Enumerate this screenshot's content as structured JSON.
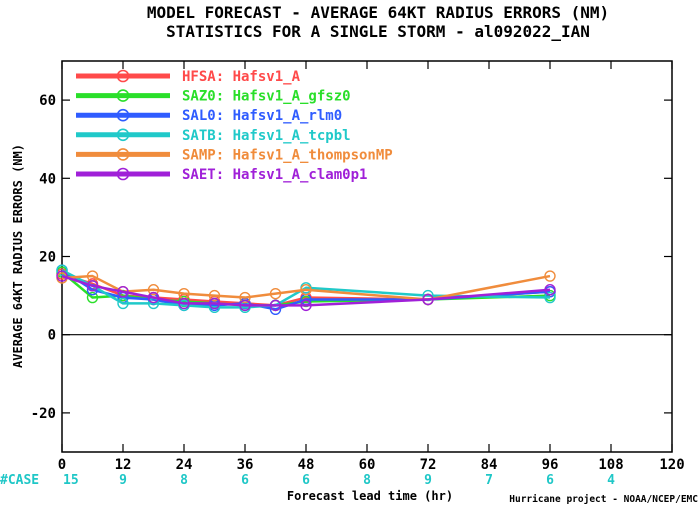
{
  "chart_data": {
    "type": "line",
    "title": "MODEL FORECAST - AVERAGE 64KT RADIUS ERRORS (NM)",
    "subtitle": "STATISTICS FOR A SINGLE STORM - al092022_IAN",
    "xlabel": "Forecast lead time (hr)",
    "ylabel": "AVERAGE 64KT RADIUS ERRORS (NM)",
    "xlim": [
      0,
      120
    ],
    "ylim": [
      -30,
      70
    ],
    "xticks": [
      0,
      12,
      24,
      36,
      48,
      60,
      72,
      84,
      96,
      108,
      120
    ],
    "yticks": [
      -20,
      0,
      20,
      40,
      60
    ],
    "zero_line": 0,
    "legend_position": "top-left",
    "x": [
      0,
      6,
      12,
      18,
      24,
      30,
      36,
      42,
      48,
      72,
      96
    ],
    "series": [
      {
        "name": "HFSA: Hafsv1_A",
        "color": "#ff4a4a",
        "values": [
          15.5,
          13,
          10,
          9.5,
          9,
          8.5,
          8,
          7.5,
          9.5,
          9,
          11
        ]
      },
      {
        "name": "SAZ0: Hafsv1_A_gfsz0",
        "color": "#2adf2a",
        "values": [
          16,
          9.5,
          10,
          9,
          8.5,
          8,
          7.5,
          7.5,
          8.5,
          9,
          10
        ]
      },
      {
        "name": "SAL0: Hafsv1_A_rlm0",
        "color": "#2f5cff",
        "values": [
          16.5,
          11.5,
          9.5,
          9,
          7.5,
          7.5,
          8,
          6.5,
          9,
          9,
          11
        ]
      },
      {
        "name": "SATB: Hafsv1_A_tcpbl",
        "color": "#20c9c9",
        "values": [
          16.5,
          12.5,
          8,
          8,
          7.5,
          7,
          7,
          7.5,
          12,
          10,
          9.5
        ]
      },
      {
        "name": "SAMP: Hafsv1_A_thompsonMP",
        "color": "#f08c3c",
        "values": [
          14.5,
          15,
          11,
          11.5,
          10.5,
          10,
          9.5,
          10.5,
          11.5,
          9,
          15
        ]
      },
      {
        "name": "SAET: Hafsv1_A_clam0p1",
        "color": "#a020d8",
        "values": [
          15,
          12.5,
          11,
          9.5,
          8,
          8,
          7.5,
          7.5,
          7.5,
          9,
          11.5
        ]
      }
    ],
    "case_label": "#CASE",
    "case_counts": [
      {
        "x": 0,
        "n": "15"
      },
      {
        "x": 12,
        "n": "9"
      },
      {
        "x": 24,
        "n": "8"
      },
      {
        "x": 36,
        "n": "6"
      },
      {
        "x": 48,
        "n": "6"
      },
      {
        "x": 60,
        "n": "8"
      },
      {
        "x": 72,
        "n": "9"
      },
      {
        "x": 84,
        "n": "7"
      },
      {
        "x": 96,
        "n": "6"
      },
      {
        "x": 108,
        "n": "4"
      }
    ],
    "credit": "Hurricane project - NOAA/NCEP/EMC"
  }
}
